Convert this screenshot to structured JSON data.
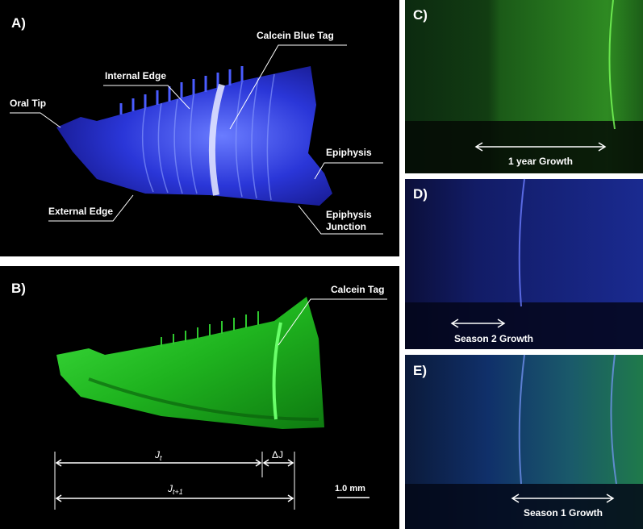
{
  "panels": {
    "a": {
      "label": "A)",
      "annotations": {
        "oral_tip": "Oral Tip",
        "internal_edge": "Internal Edge",
        "calcein_blue_tag": "Calcein Blue Tag",
        "epiphysis": "Epiphysis",
        "external_edge": "External Edge",
        "epiphysis_junction": [
          "Epiphysis",
          "Junction"
        ]
      }
    },
    "b": {
      "label": "B)",
      "annotations": {
        "calcein_tag": "Calcein Tag"
      },
      "measurements": {
        "jt": {
          "base": "J",
          "sub": "t"
        },
        "delta_j": "ΔJ",
        "jt1": {
          "base": "J",
          "sub": "t+1"
        },
        "scale_bar": "1.0 mm"
      }
    },
    "c": {
      "label": "C)",
      "caption": "1 year Growth"
    },
    "d": {
      "label": "D)",
      "caption": "Season 2 Growth"
    },
    "e": {
      "label": "E)",
      "caption": "Season 1 Growth"
    }
  }
}
